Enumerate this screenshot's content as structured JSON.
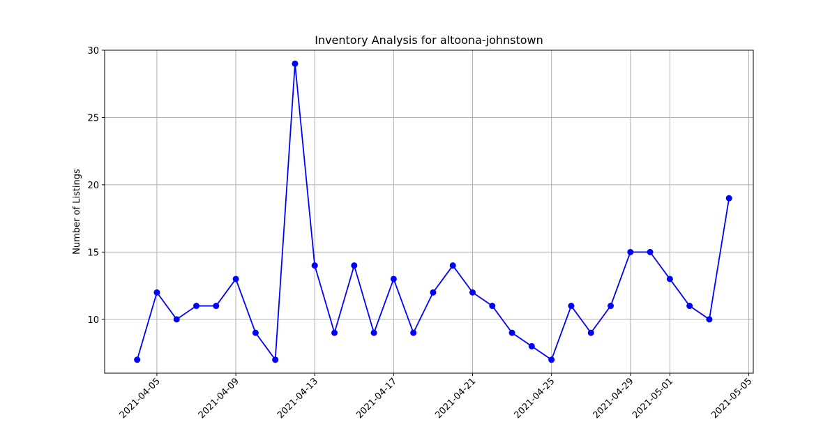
{
  "chart_data": {
    "type": "line",
    "title": "Inventory Analysis for altoona-johnstown",
    "xlabel": "",
    "ylabel": "Number of Listings",
    "grid": true,
    "x_ticks": [
      "2021-04-05",
      "2021-04-09",
      "2021-04-13",
      "2021-04-17",
      "2021-04-21",
      "2021-04-25",
      "2021-04-29",
      "2021-05-01",
      "2021-05-05"
    ],
    "y_ticks": [
      10,
      15,
      20,
      25,
      30
    ],
    "xlim": [
      "2021-04-02",
      "2021-05-05"
    ],
    "ylim": [
      6,
      30
    ],
    "series": [
      {
        "color": "#0000ff",
        "marker": "circle",
        "x": [
          "2021-04-04",
          "2021-04-05",
          "2021-04-06",
          "2021-04-07",
          "2021-04-08",
          "2021-04-09",
          "2021-04-10",
          "2021-04-11",
          "2021-04-12",
          "2021-04-13",
          "2021-04-14",
          "2021-04-15",
          "2021-04-16",
          "2021-04-17",
          "2021-04-18",
          "2021-04-19",
          "2021-04-20",
          "2021-04-21",
          "2021-04-22",
          "2021-04-23",
          "2021-04-24",
          "2021-04-25",
          "2021-04-26",
          "2021-04-27",
          "2021-04-28",
          "2021-04-29",
          "2021-04-30",
          "2021-05-01",
          "2021-05-02",
          "2021-05-03",
          "2021-05-04"
        ],
        "values": [
          7,
          12,
          10,
          11,
          11,
          13,
          9,
          7,
          29,
          14,
          9,
          14,
          9,
          13,
          9,
          12,
          14,
          12,
          11,
          9,
          8,
          7,
          11,
          9,
          11,
          15,
          15,
          13,
          11,
          10,
          19
        ]
      }
    ]
  }
}
